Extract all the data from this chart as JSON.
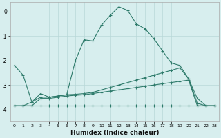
{
  "xlabel": "Humidex (Indice chaleur)",
  "bg_color": "#d7eeee",
  "grid_color": "#b8d8d8",
  "line_color": "#2d7a6a",
  "xlim": [
    -0.5,
    23.5
  ],
  "ylim": [
    -4.5,
    0.4
  ],
  "yticks": [
    0,
    -1,
    -2,
    -3,
    -4
  ],
  "xticks": [
    0,
    1,
    2,
    3,
    4,
    5,
    6,
    7,
    8,
    9,
    10,
    11,
    12,
    13,
    14,
    15,
    16,
    17,
    18,
    19,
    20,
    21,
    22,
    23
  ],
  "line1_x": [
    0,
    1,
    2,
    3,
    4,
    5,
    6,
    7,
    8,
    9,
    10,
    11,
    12,
    13,
    14,
    15,
    16,
    17,
    18,
    19,
    20,
    21,
    22,
    23
  ],
  "line1_y": [
    -2.2,
    -2.6,
    -3.7,
    -3.35,
    -3.5,
    -3.45,
    -3.4,
    -2.0,
    -1.15,
    -1.2,
    -0.55,
    -0.15,
    0.2,
    0.05,
    -0.5,
    -0.7,
    -1.1,
    -1.6,
    -2.1,
    -2.2,
    -2.75,
    -3.55,
    -3.85,
    -3.85
  ],
  "line2_x": [
    0,
    1,
    2,
    3,
    4,
    5,
    6,
    7,
    8,
    9,
    10,
    11,
    12,
    13,
    14,
    15,
    16,
    17,
    18,
    19,
    20,
    21,
    22,
    23
  ],
  "line2_y": [
    -3.85,
    -3.85,
    -3.7,
    -3.5,
    -3.5,
    -3.45,
    -3.4,
    -3.38,
    -3.35,
    -3.3,
    -3.2,
    -3.1,
    -3.0,
    -2.9,
    -2.8,
    -2.7,
    -2.6,
    -2.5,
    -2.4,
    -2.3,
    -2.75,
    -3.75,
    -3.85,
    -3.85
  ],
  "line3_x": [
    0,
    1,
    2,
    3,
    4,
    5,
    6,
    7,
    8,
    9,
    10,
    11,
    12,
    13,
    14,
    15,
    16,
    17,
    18,
    19,
    20,
    21,
    22,
    23
  ],
  "line3_y": [
    -3.85,
    -3.85,
    -3.85,
    -3.55,
    -3.55,
    -3.5,
    -3.45,
    -3.42,
    -3.4,
    -3.35,
    -3.3,
    -3.25,
    -3.2,
    -3.15,
    -3.1,
    -3.05,
    -3.0,
    -2.95,
    -2.9,
    -2.85,
    -2.8,
    -3.85,
    -3.85,
    -3.85
  ],
  "line4_x": [
    0,
    1,
    2,
    3,
    4,
    5,
    6,
    7,
    8,
    9,
    10,
    11,
    12,
    13,
    14,
    15,
    16,
    17,
    18,
    19,
    20,
    21,
    22,
    23
  ],
  "line4_y": [
    -3.85,
    -3.85,
    -3.85,
    -3.85,
    -3.85,
    -3.85,
    -3.85,
    -3.85,
    -3.85,
    -3.85,
    -3.85,
    -3.85,
    -3.85,
    -3.85,
    -3.85,
    -3.85,
    -3.85,
    -3.85,
    -3.85,
    -3.85,
    -3.85,
    -3.85,
    -3.85,
    -3.85
  ]
}
